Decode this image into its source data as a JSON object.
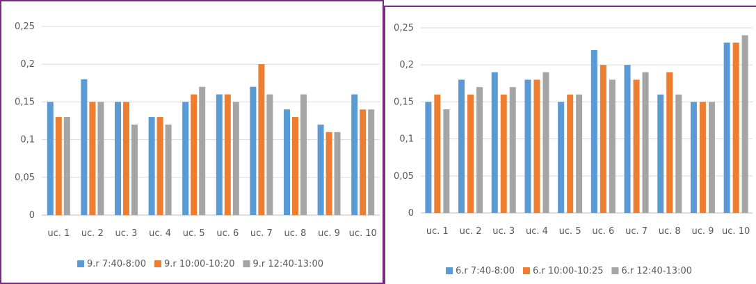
{
  "chart_data": [
    {
      "type": "bar",
      "categories": [
        "uc. 1",
        "uc. 2",
        "uc. 3",
        "uc. 4",
        "uc. 5",
        "uc. 6",
        "uc. 7",
        "uc. 8",
        "uc. 9",
        "uc. 10"
      ],
      "series": [
        {
          "name": "9.r 7:40-8:00",
          "color": "#5b9bd5",
          "values": [
            0.15,
            0.18,
            0.15,
            0.13,
            0.15,
            0.16,
            0.17,
            0.14,
            0.12,
            0.16
          ]
        },
        {
          "name": "9.r 10:00-10:20",
          "color": "#ed7d31",
          "values": [
            0.13,
            0.15,
            0.15,
            0.13,
            0.16,
            0.16,
            0.2,
            0.13,
            0.11,
            0.14
          ]
        },
        {
          "name": "9.r 12:40-13:00",
          "color": "#a5a5a5",
          "values": [
            0.13,
            0.15,
            0.12,
            0.12,
            0.17,
            0.15,
            0.16,
            0.16,
            0.11,
            0.14
          ]
        }
      ],
      "y_ticks": [
        "0",
        "0,05",
        "0,1",
        "0,15",
        "0,2",
        "0,25"
      ],
      "ylim": [
        0,
        0.25
      ],
      "grid": true,
      "legend_position": "bottom"
    },
    {
      "type": "bar",
      "categories": [
        "uc. 1",
        "uc. 2",
        "uc. 3",
        "uc. 4",
        "uc. 5",
        "uc. 6",
        "uc. 7",
        "uc. 8",
        "uc. 9",
        "uc. 10"
      ],
      "series": [
        {
          "name": "6.r 7:40-8:00",
          "color": "#5b9bd5",
          "values": [
            0.15,
            0.18,
            0.19,
            0.18,
            0.15,
            0.22,
            0.2,
            0.16,
            0.15,
            0.23
          ]
        },
        {
          "name": "6.r 10:00-10:25",
          "color": "#ed7d31",
          "values": [
            0.16,
            0.16,
            0.16,
            0.18,
            0.16,
            0.2,
            0.18,
            0.19,
            0.15,
            0.23
          ]
        },
        {
          "name": "6.r 12:40-13:00",
          "color": "#a5a5a5",
          "values": [
            0.14,
            0.17,
            0.17,
            0.19,
            0.16,
            0.18,
            0.19,
            0.16,
            0.15,
            0.24
          ]
        }
      ],
      "y_ticks": [
        "0",
        "0,05",
        "0,1",
        "0,15",
        "0,2",
        "0,25"
      ],
      "ylim": [
        0,
        0.25
      ],
      "grid": true,
      "legend_position": "bottom"
    }
  ]
}
